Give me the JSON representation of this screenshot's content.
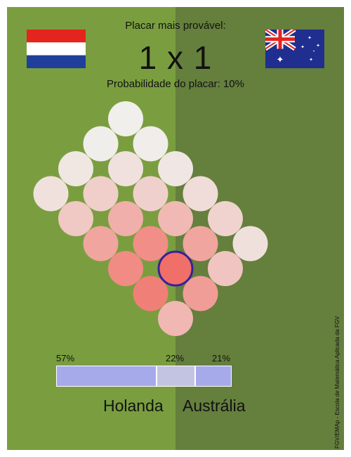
{
  "header": {
    "title": "Placar mais provável:",
    "score": "1 x 1",
    "probability_text": "Probabilidade do placar: 10%"
  },
  "teams": {
    "home": {
      "name": "Holanda",
      "flag": "netherlands-flag"
    },
    "away": {
      "name": "Austrália",
      "flag": "australia-flag"
    }
  },
  "outcome_bar": {
    "home_win": {
      "label": "57%",
      "value": 57
    },
    "draw": {
      "label": "22%",
      "value": 22
    },
    "away_win": {
      "label": "21%",
      "value": 21
    }
  },
  "score_grid": {
    "highlighted": [
      1,
      1
    ],
    "cells": [
      {
        "home": 0,
        "away": 0,
        "color": "#f1b7b3"
      },
      {
        "home": 1,
        "away": 0,
        "color": "#f07f78"
      },
      {
        "home": 2,
        "away": 0,
        "color": "#f08c84"
      },
      {
        "home": 3,
        "away": 0,
        "color": "#f0a59e"
      },
      {
        "home": 4,
        "away": 0,
        "color": "#f0c8c4"
      },
      {
        "home": 5,
        "away": 0,
        "color": "#f0e1dd"
      },
      {
        "home": 0,
        "away": 1,
        "color": "#f19d97"
      },
      {
        "home": 1,
        "away": 1,
        "color": "#f07069"
      },
      {
        "home": 2,
        "away": 1,
        "color": "#f08e87"
      },
      {
        "home": 3,
        "away": 1,
        "color": "#f0afaa"
      },
      {
        "home": 4,
        "away": 1,
        "color": "#f0cfcb"
      },
      {
        "home": 5,
        "away": 1,
        "color": "#f0e6e2"
      },
      {
        "home": 0,
        "away": 2,
        "color": "#f0c4c0"
      },
      {
        "home": 1,
        "away": 2,
        "color": "#f0a59f"
      },
      {
        "home": 2,
        "away": 2,
        "color": "#f0b9b4"
      },
      {
        "home": 3,
        "away": 2,
        "color": "#f0d0cc"
      },
      {
        "home": 4,
        "away": 2,
        "color": "#f0e1de"
      },
      {
        "home": 5,
        "away": 2,
        "color": "#f0eeea"
      },
      {
        "home": 0,
        "away": 3,
        "color": "#f0e0dc"
      },
      {
        "home": 1,
        "away": 3,
        "color": "#f0d3cf"
      },
      {
        "home": 2,
        "away": 3,
        "color": "#f0dcd8"
      },
      {
        "home": 3,
        "away": 3,
        "color": "#f0e7e4"
      },
      {
        "home": 4,
        "away": 3,
        "color": "#f0edea"
      },
      {
        "home": 5,
        "away": 3,
        "color": "#f0efeb"
      }
    ]
  },
  "colors": {
    "home_bg": "#7a9e3f",
    "away_bg": "#657f3d",
    "bar_home": "#a6aaeb",
    "bar_draw": "#c3c4e2",
    "bar_away": "#a6aaeb",
    "highlight_stroke": "#3b1f9a"
  },
  "credit": "FGV/EMAp - Escola de Matemática Aplicada da FGV"
}
